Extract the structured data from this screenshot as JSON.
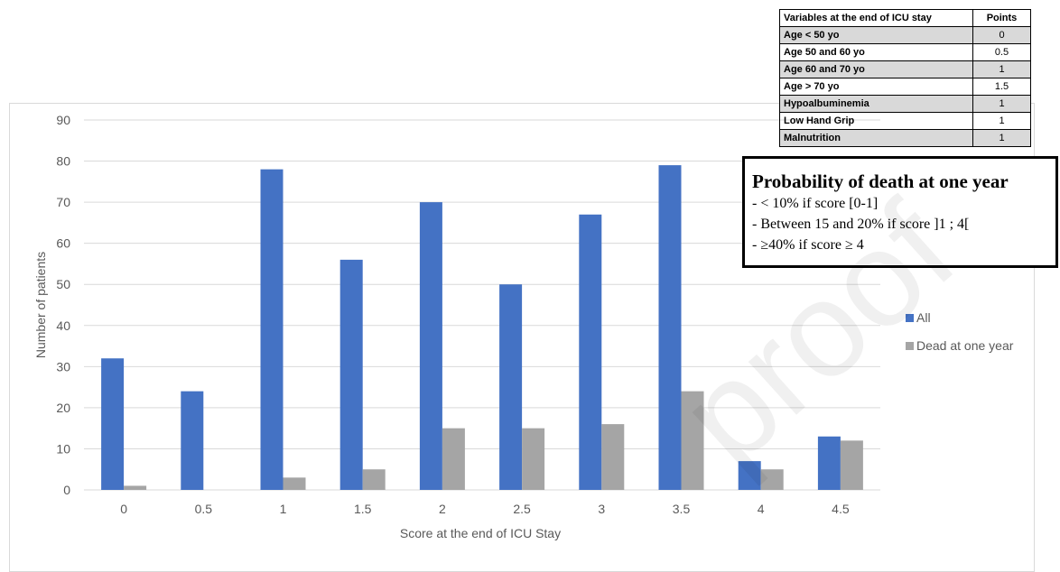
{
  "chart_data": {
    "type": "bar",
    "categories": [
      "0",
      "0.5",
      "1",
      "1.5",
      "2",
      "2.5",
      "3",
      "3.5",
      "4",
      "4.5"
    ],
    "series": [
      {
        "name": "All",
        "values": [
          32,
          24,
          78,
          56,
          70,
          50,
          67,
          79,
          7,
          13
        ],
        "color": "#4472c4"
      },
      {
        "name": "Dead at one year",
        "values": [
          1,
          0,
          3,
          5,
          15,
          15,
          16,
          24,
          5,
          12
        ],
        "color": "#a5a5a5"
      }
    ],
    "title": "",
    "xlabel": "Score at the end of ICU Stay",
    "ylabel": "Number of patients",
    "ylim": [
      0,
      90
    ],
    "yticks": [
      "0",
      "10",
      "20",
      "30",
      "40",
      "50",
      "60",
      "70",
      "80",
      "90"
    ],
    "grid": true,
    "legend_position": "right"
  },
  "score_table": {
    "headers": [
      "Variables at the end of ICU stay",
      "Points"
    ],
    "rows": [
      {
        "variable": "Age < 50 yo",
        "points": "0"
      },
      {
        "variable": "Age 50 and 60 yo",
        "points": "0.5"
      },
      {
        "variable": "Age 60 and 70 yo",
        "points": "1"
      },
      {
        "variable": "Age > 70 yo",
        "points": "1.5"
      },
      {
        "variable": "Hypoalbuminemia",
        "points": "1"
      },
      {
        "variable": "Low Hand Grip",
        "points": "1"
      },
      {
        "variable": "Malnutrition",
        "points": "1"
      }
    ]
  },
  "probability_box": {
    "title": "Probability of death at one year",
    "lines": [
      "- < 10% if score [0-1]",
      "- Between  15 and 20% if score ]1 ; 4[",
      "- ≥40% if score ≥ 4"
    ]
  },
  "watermark": "proof"
}
